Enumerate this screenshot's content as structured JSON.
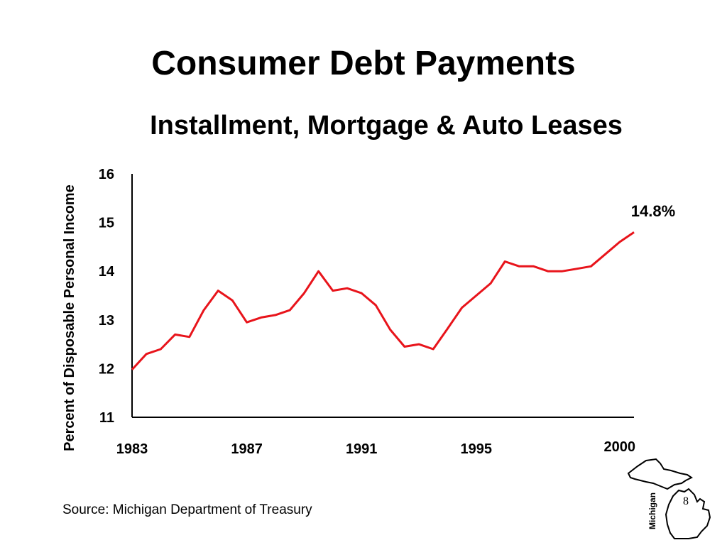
{
  "slide": {
    "title": "Consumer Debt Payments",
    "subtitle": "Installment, Mortgage & Auto Leases",
    "source": "Source:  Michigan Department of Treasury",
    "page_number": "8",
    "logo_label": "Michigan"
  },
  "chart_data": {
    "type": "line",
    "title": "Consumer Debt Payments",
    "subtitle": "Installment, Mortgage & Auto Leases",
    "xlabel": "",
    "ylabel": "Percent of Disposable Personal Income",
    "ylim": [
      11,
      16
    ],
    "xlim": [
      1983,
      2000.5
    ],
    "yticks": [
      "11",
      "12",
      "13",
      "14",
      "15",
      "16"
    ],
    "xticks": [
      "1983",
      "1987",
      "1991",
      "1995",
      "2000"
    ],
    "grid": false,
    "line_color": "#e8141b",
    "annotation": "14.8%",
    "series": [
      {
        "x": [
          1983.0,
          1983.5,
          1984.0,
          1984.5,
          1985.0,
          1985.5,
          1986.0,
          1986.5,
          1987.0,
          1987.5,
          1988.0,
          1988.5,
          1989.0,
          1989.5,
          1990.0,
          1990.5,
          1991.0,
          1991.5,
          1992.0,
          1992.5,
          1993.0,
          1993.5,
          1994.0,
          1994.5,
          1995.0,
          1995.5,
          1996.0,
          1996.5,
          1997.0,
          1997.5,
          1998.0,
          1998.5,
          1999.0,
          1999.5,
          2000.0,
          2000.5
        ],
        "values": [
          11.98,
          12.3,
          12.4,
          12.7,
          12.65,
          13.2,
          13.6,
          13.4,
          12.95,
          13.05,
          13.1,
          13.2,
          13.55,
          14.0,
          13.6,
          13.65,
          13.55,
          13.3,
          12.8,
          12.45,
          12.5,
          12.4,
          12.82,
          13.25,
          13.5,
          13.75,
          14.2,
          14.1,
          14.1,
          14.0,
          14.0,
          14.05,
          14.1,
          14.35,
          14.6,
          14.8
        ]
      }
    ]
  }
}
